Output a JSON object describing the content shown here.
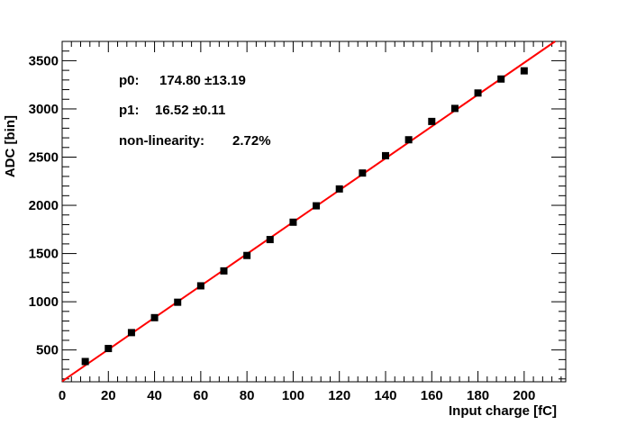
{
  "chart_data": {
    "type": "scatter",
    "xlabel": "Input charge [fC]",
    "ylabel": "ADC [bin]",
    "xlim": [
      0,
      218
    ],
    "ylim": [
      170,
      3700
    ],
    "x_ticks": [
      0,
      20,
      40,
      60,
      80,
      100,
      120,
      140,
      160,
      180,
      200
    ],
    "y_ticks": [
      500,
      1000,
      1500,
      2000,
      2500,
      3000,
      3500
    ],
    "x_tick_labels": [
      "0",
      "20",
      "40",
      "60",
      "80",
      "100",
      "120",
      "140",
      "160",
      "180",
      "200"
    ],
    "y_tick_labels": [
      "500",
      "1000",
      "1500",
      "2000",
      "2500",
      "3000",
      "3500"
    ],
    "grid": false,
    "series": [
      {
        "points": [
          [
            10,
            380
          ],
          [
            20,
            515
          ],
          [
            30,
            680
          ],
          [
            40,
            835
          ],
          [
            50,
            995
          ],
          [
            60,
            1165
          ],
          [
            70,
            1320
          ],
          [
            80,
            1480
          ],
          [
            90,
            1645
          ],
          [
            100,
            1825
          ],
          [
            110,
            1995
          ],
          [
            120,
            2170
          ],
          [
            130,
            2335
          ],
          [
            140,
            2515
          ],
          [
            150,
            2680
          ],
          [
            160,
            2870
          ],
          [
            170,
            3005
          ],
          [
            180,
            3165
          ],
          [
            190,
            3310
          ],
          [
            200,
            3395
          ]
        ],
        "color": "#000000",
        "marker": "square"
      }
    ],
    "fit": {
      "type": "line",
      "p0": 174.8,
      "p1": 16.52,
      "x_range": [
        0,
        216
      ],
      "color": "#ff0000"
    },
    "annotations": {
      "p0_label": "p0:",
      "p0_value": "174.80 ±13.19",
      "p1_label": "p1:",
      "p1_value": "16.52 ±0.11",
      "nonlin_label": "non-linearity:",
      "nonlin_value": "2.72%"
    }
  }
}
